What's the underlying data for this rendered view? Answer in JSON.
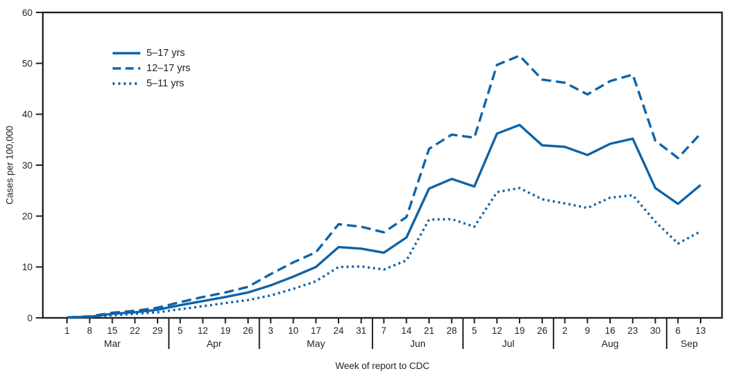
{
  "chart_data": {
    "type": "line",
    "title": "",
    "xlabel": "Week of report to CDC",
    "ylabel": "Cases per 100,000",
    "ylim": [
      0,
      60
    ],
    "yticks": [
      0,
      10,
      20,
      30,
      40,
      50,
      60
    ],
    "x_tick_labels": [
      "1",
      "8",
      "15",
      "22",
      "29",
      "5",
      "12",
      "19",
      "26",
      "3",
      "10",
      "17",
      "24",
      "31",
      "7",
      "14",
      "21",
      "28",
      "5",
      "12",
      "19",
      "26",
      "2",
      "9",
      "16",
      "23",
      "30",
      "6",
      "13"
    ],
    "months": [
      {
        "label": "Mar",
        "weeks": 5
      },
      {
        "label": "Apr",
        "weeks": 4
      },
      {
        "label": "May",
        "weeks": 5
      },
      {
        "label": "Jun",
        "weeks": 4
      },
      {
        "label": "Jul",
        "weeks": 4
      },
      {
        "label": "Aug",
        "weeks": 5
      },
      {
        "label": "Sep",
        "weeks": 2
      }
    ],
    "series": [
      {
        "name": "5–17 yrs",
        "style": "solid",
        "values": [
          0.1,
          0.2,
          0.8,
          1.1,
          1.6,
          2.5,
          3.3,
          4.1,
          5.0,
          6.4,
          8.1,
          10.0,
          13.9,
          13.6,
          12.8,
          15.8,
          25.4,
          27.3,
          25.8,
          36.2,
          37.9,
          33.9,
          33.6,
          32.0,
          34.2,
          35.2,
          25.5,
          22.4,
          26.1
        ]
      },
      {
        "name": "12–17 yrs",
        "style": "dashed",
        "values": [
          0.1,
          0.3,
          1.0,
          1.4,
          2.0,
          3.1,
          4.1,
          5.0,
          6.1,
          8.6,
          10.9,
          12.9,
          18.4,
          17.9,
          16.8,
          19.8,
          33.2,
          36.0,
          35.4,
          49.7,
          51.5,
          46.8,
          46.2,
          43.9,
          46.5,
          47.8,
          34.8,
          31.4,
          36.2
        ]
      },
      {
        "name": "5–11 yrs",
        "style": "dotted",
        "values": [
          0.1,
          0.2,
          0.5,
          0.8,
          1.1,
          1.7,
          2.3,
          2.9,
          3.5,
          4.4,
          5.7,
          7.2,
          10.0,
          10.1,
          9.5,
          11.3,
          19.3,
          19.4,
          17.9,
          24.7,
          25.5,
          23.3,
          22.5,
          21.6,
          23.6,
          24.1,
          18.9,
          14.6,
          17.0
        ]
      }
    ],
    "line_color": "#0d63a8",
    "axis_color": "#231f20",
    "legend_position": "top-left-inside",
    "grid": "off"
  }
}
